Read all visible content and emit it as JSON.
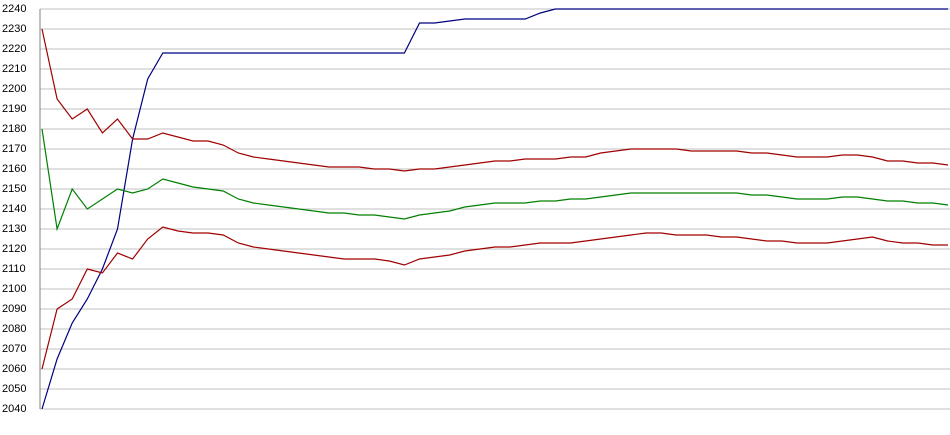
{
  "chart_data": {
    "type": "line",
    "categories": [
      null,
      null,
      null,
      null,
      null,
      null,
      null,
      null,
      null,
      null,
      null,
      null,
      null,
      null,
      null,
      null,
      null,
      null,
      null,
      null,
      null,
      null,
      null,
      null,
      null,
      null,
      null,
      null,
      null,
      null,
      null,
      null,
      null,
      null,
      null,
      null,
      null,
      null,
      null,
      null,
      null,
      null,
      null,
      null,
      null,
      null,
      null,
      null,
      null,
      null,
      null,
      null,
      null,
      null,
      null,
      null,
      null,
      null,
      null,
      null,
      null
    ],
    "series": [
      {
        "color": "#000080",
        "values": [
          2040,
          2065,
          2083,
          2095,
          2110,
          2130,
          2175,
          2205,
          2218,
          2218,
          2218,
          2218,
          2218,
          2218,
          2218,
          2218,
          2218,
          2218,
          2218,
          2218,
          2218,
          2218,
          2218,
          2218,
          2218,
          2233,
          2233,
          2234,
          2235,
          2235,
          2235,
          2235,
          2235,
          2238,
          2240,
          2240,
          2240,
          2240,
          2240,
          2240,
          2240,
          2240,
          2240,
          2240,
          2240,
          2240,
          2240,
          2240,
          2240,
          2240,
          2240,
          2240,
          2240,
          2240,
          2240,
          2240,
          2240,
          2240,
          2240,
          2240,
          2240
        ]
      },
      {
        "color": "#a00000",
        "values": [
          2230,
          2195,
          2185,
          2190,
          2178,
          2185,
          2175,
          2175,
          2178,
          2176,
          2174,
          2174,
          2172,
          2168,
          2166,
          2165,
          2164,
          2163,
          2162,
          2161,
          2161,
          2161,
          2160,
          2160,
          2159,
          2160,
          2160,
          2161,
          2162,
          2163,
          2164,
          2164,
          2165,
          2165,
          2165,
          2166,
          2166,
          2168,
          2169,
          2170,
          2170,
          2170,
          2170,
          2169,
          2169,
          2169,
          2169,
          2168,
          2168,
          2167,
          2166,
          2166,
          2166,
          2167,
          2167,
          2166,
          2164,
          2164,
          2163,
          2163,
          2162
        ]
      },
      {
        "color": "#008000",
        "values": [
          2180,
          2130,
          2150,
          2140,
          2145,
          2150,
          2148,
          2150,
          2155,
          2153,
          2151,
          2150,
          2149,
          2145,
          2143,
          2142,
          2141,
          2140,
          2139,
          2138,
          2138,
          2137,
          2137,
          2136,
          2135,
          2137,
          2138,
          2139,
          2141,
          2142,
          2143,
          2143,
          2143,
          2144,
          2144,
          2145,
          2145,
          2146,
          2147,
          2148,
          2148,
          2148,
          2148,
          2148,
          2148,
          2148,
          2148,
          2147,
          2147,
          2146,
          2145,
          2145,
          2145,
          2146,
          2146,
          2145,
          2144,
          2144,
          2143,
          2143,
          2142
        ]
      },
      {
        "color": "#a00000",
        "values": [
          2060,
          2090,
          2095,
          2110,
          2108,
          2118,
          2115,
          2125,
          2131,
          2129,
          2128,
          2128,
          2127,
          2123,
          2121,
          2120,
          2119,
          2118,
          2117,
          2116,
          2115,
          2115,
          2115,
          2114,
          2112,
          2115,
          2116,
          2117,
          2119,
          2120,
          2121,
          2121,
          2122,
          2123,
          2123,
          2123,
          2124,
          2125,
          2126,
          2127,
          2128,
          2128,
          2127,
          2127,
          2127,
          2126,
          2126,
          2125,
          2124,
          2124,
          2123,
          2123,
          2123,
          2124,
          2125,
          2126,
          2124,
          2123,
          2123,
          2122,
          2122
        ]
      }
    ],
    "ylim": [
      2040,
      2240
    ],
    "yticks": [
      2040,
      2050,
      2060,
      2070,
      2080,
      2090,
      2100,
      2110,
      2120,
      2130,
      2140,
      2150,
      2160,
      2170,
      2180,
      2190,
      2200,
      2210,
      2220,
      2230,
      2240
    ],
    "grid": true
  }
}
